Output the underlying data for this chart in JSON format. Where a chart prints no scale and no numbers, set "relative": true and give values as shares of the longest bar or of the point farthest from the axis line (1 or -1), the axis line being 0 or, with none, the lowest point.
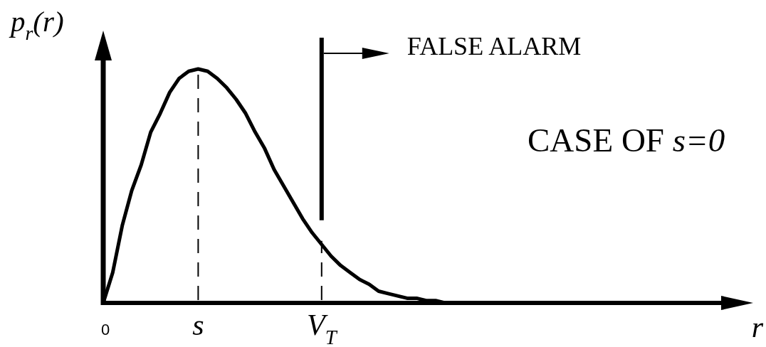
{
  "chart_data": {
    "type": "line",
    "relative": true,
    "ylabel": "p$_{r}$(r)",
    "xlabel": "r",
    "categories": [
      "0",
      null,
      null,
      null,
      null,
      null,
      null,
      null,
      null,
      null,
      "s",
      null,
      null,
      null,
      null,
      null,
      null,
      null,
      null,
      null,
      null,
      null,
      null,
      "V$_{T}$",
      null,
      null,
      null,
      null,
      null,
      null,
      null,
      null,
      null,
      null,
      null,
      null,
      null,
      null,
      null,
      null,
      null,
      null,
      null,
      null,
      null,
      null,
      null,
      null,
      null,
      null,
      null,
      null,
      null,
      null,
      null,
      null,
      null,
      null,
      null,
      null,
      null,
      null,
      null
    ],
    "series": [
      {
        "color": "#000000",
        "values": [
          0,
          0.13,
          0.33,
          0.48,
          0.59,
          0.73,
          0.81,
          0.9,
          0.96,
          0.99,
          1,
          0.99,
          0.96,
          0.92,
          0.87,
          0.81,
          0.73,
          0.66,
          0.57,
          0.5,
          0.43,
          0.36,
          0.3,
          0.25,
          0.2,
          0.16,
          0.13,
          0.1,
          0.08,
          0.05,
          0.04,
          0.03,
          0.02,
          0.02,
          0.01,
          0.01,
          0,
          0,
          0,
          0,
          0,
          0,
          0,
          0,
          0,
          0,
          0,
          0,
          0,
          0,
          0,
          0,
          0,
          0,
          0,
          0,
          0,
          0,
          0,
          0,
          0,
          0,
          0
        ]
      }
    ],
    "ref_lines": [
      {
        "axis": "x",
        "value": "s",
        "line_style": "dashed"
      },
      {
        "axis": "x",
        "value": "V$_{T}$",
        "line_style": "dashed",
        "label": "FALSE ALARM"
      }
    ],
    "annotations": [
      "CASE OF s=0"
    ]
  }
}
